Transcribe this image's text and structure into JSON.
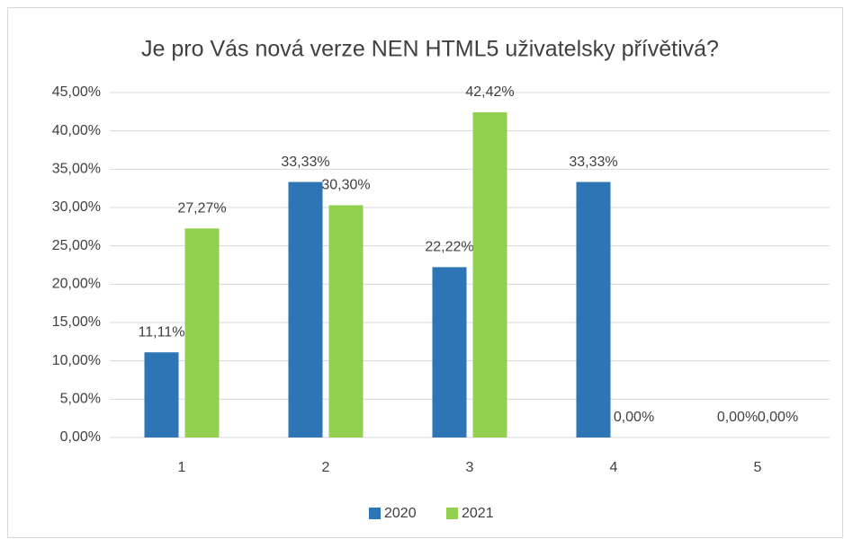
{
  "chart_data": {
    "type": "bar",
    "title": "Je pro Vás nová verze NEN HTML5 uživatelsky přívětivá?",
    "categories": [
      "1",
      "2",
      "3",
      "4",
      "5"
    ],
    "series": [
      {
        "name": "2020",
        "color": "#2e75b6",
        "values": [
          11.11,
          33.33,
          22.22,
          33.33,
          0
        ],
        "value_labels": [
          "11,11%",
          "33,33%",
          "22,22%",
          "33,33%",
          "0,00%"
        ]
      },
      {
        "name": "2021",
        "color": "#92d050",
        "values": [
          27.27,
          30.3,
          42.42,
          0,
          0
        ],
        "value_labels": [
          "27,27%",
          "30,30%",
          "42,42%",
          "0,00%",
          "0,00%"
        ]
      }
    ],
    "ylim": [
      0,
      45
    ],
    "yticks": [
      {
        "value": 0,
        "label": "0,00%"
      },
      {
        "value": 5,
        "label": "5,00%"
      },
      {
        "value": 10,
        "label": "10,00%"
      },
      {
        "value": 15,
        "label": "15,00%"
      },
      {
        "value": 20,
        "label": "20,00%"
      },
      {
        "value": 25,
        "label": "25,00%"
      },
      {
        "value": 30,
        "label": "30,00%"
      },
      {
        "value": 35,
        "label": "35,00%"
      },
      {
        "value": 40,
        "label": "40,00%"
      },
      {
        "value": 45,
        "label": "45,00%"
      }
    ],
    "grid": true,
    "legend": "bottom"
  }
}
